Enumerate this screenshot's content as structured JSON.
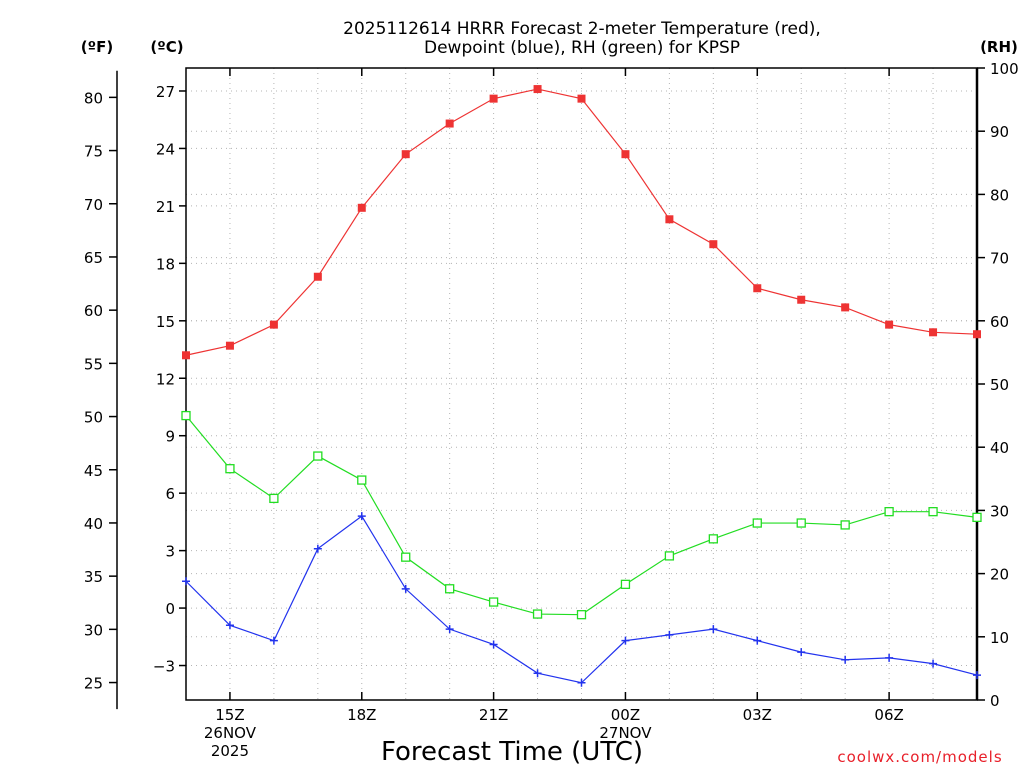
{
  "chart_data": {
    "type": "line",
    "title": [
      "2025112614 HRRR Forecast 2-meter Temperature (red),",
      "Dewpoint (blue), RH (green) for KPSP"
    ],
    "xlabel": "Forecast Time (UTC)",
    "credit": "coolwx.com/models",
    "units": {
      "fahrenheit": "(ºF)",
      "celsius": "(ºC)",
      "rh": "(RH)"
    },
    "grid": true,
    "x": [
      14,
      15,
      16,
      17,
      18,
      19,
      20,
      21,
      22,
      23,
      24,
      25,
      26,
      27,
      28,
      29,
      30,
      31,
      32
    ],
    "xlim": [
      14,
      32
    ],
    "x_ticks": [
      {
        "x": 15,
        "lines": [
          "15Z",
          "26NOV",
          "2025"
        ]
      },
      {
        "x": 18,
        "lines": [
          "18Z"
        ]
      },
      {
        "x": 21,
        "lines": [
          "21Z"
        ]
      },
      {
        "x": 24,
        "lines": [
          "00Z",
          "27NOV"
        ]
      },
      {
        "x": 27,
        "lines": [
          "03Z"
        ]
      },
      {
        "x": 30,
        "lines": [
          "06Z"
        ]
      }
    ],
    "ylim_celsius": [
      -4.8,
      28.2
    ],
    "celsius_ticks": [
      -3,
      0,
      3,
      6,
      9,
      12,
      15,
      18,
      21,
      24,
      27
    ],
    "fahrenheit_ticks": [
      25,
      30,
      35,
      40,
      45,
      50,
      55,
      60,
      65,
      70,
      75,
      80
    ],
    "ylim_rh": [
      0,
      100
    ],
    "rh_ticks": [
      0,
      10,
      20,
      30,
      40,
      50,
      60,
      70,
      80,
      90,
      100
    ],
    "series": [
      {
        "name": "Temperature",
        "axis": "celsius",
        "color": "#ee3333",
        "marker": "filled-square",
        "values": [
          13.2,
          13.7,
          14.8,
          17.3,
          20.9,
          23.7,
          25.3,
          26.6,
          27.1,
          26.6,
          23.7,
          20.3,
          19.0,
          16.7,
          16.1,
          15.7,
          14.8,
          14.4,
          14.3
        ]
      },
      {
        "name": "Dewpoint",
        "axis": "celsius",
        "color": "#2233ee",
        "marker": "plus",
        "values": [
          1.4,
          -0.9,
          -1.7,
          3.1,
          4.8,
          1.0,
          -1.1,
          -1.9,
          -3.4,
          -3.9,
          -1.7,
          -1.4,
          -1.1,
          -1.7,
          -2.3,
          -2.7,
          -2.6,
          -2.9,
          -3.5
        ]
      },
      {
        "name": "RH",
        "axis": "rh",
        "color": "#22dd22",
        "marker": "open-square",
        "values": [
          45.0,
          36.6,
          31.9,
          38.6,
          34.8,
          22.6,
          17.6,
          15.5,
          13.6,
          13.5,
          18.3,
          22.8,
          25.5,
          28.0,
          28.0,
          27.7,
          29.8,
          29.8,
          28.9
        ]
      }
    ]
  }
}
